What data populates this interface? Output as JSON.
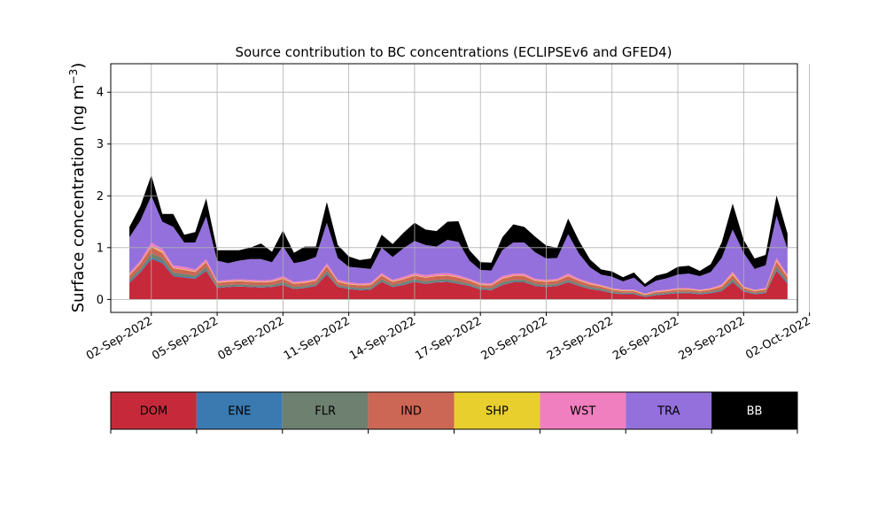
{
  "chart_data": {
    "type": "area",
    "title": "Source contribution to BC concentrations (ECLIPSEv6 and GFED4)",
    "ylabel_main": "Surface concentration (ng m",
    "ylabel_exp": "−3",
    "ylabel_close": ")",
    "xlabel": "",
    "ylim": [
      -0.25,
      4.55
    ],
    "yticks": [
      "0",
      "1",
      "2",
      "3",
      "4"
    ],
    "ytick_values": [
      0,
      1,
      2,
      3,
      4
    ],
    "xlim_days": [
      -0.85,
      30.45
    ],
    "xtick_days": [
      1,
      4,
      7,
      10,
      13,
      16,
      19,
      22,
      25,
      28,
      31
    ],
    "xticks": [
      "02-Sep-2022",
      "05-Sep-2022",
      "08-Sep-2022",
      "11-Sep-2022",
      "14-Sep-2022",
      "17-Sep-2022",
      "20-Sep-2022",
      "23-Sep-2022",
      "26-Sep-2022",
      "29-Sep-2022",
      "02-Oct-2022"
    ],
    "x_unit": "days since 01-Sep-2022",
    "x": [
      0,
      0.5,
      1,
      1.5,
      2,
      2.5,
      3,
      3.5,
      4,
      4.5,
      5,
      5.5,
      6,
      6.5,
      7,
      7.5,
      8,
      8.5,
      9,
      9.5,
      10,
      10.5,
      11,
      11.5,
      12,
      12.5,
      13,
      13.5,
      14,
      14.5,
      15,
      15.5,
      16,
      16.5,
      17,
      17.5,
      18,
      18.5,
      19,
      19.5,
      20,
      20.5,
      21,
      21.5,
      22,
      22.5,
      23,
      23.5,
      24,
      24.5,
      25,
      25.5,
      26,
      26.5,
      27,
      27.5,
      28,
      28.5,
      29,
      29.5,
      30
    ],
    "legend": [
      {
        "label": "DOM",
        "color": "#c62a3a"
      },
      {
        "label": "ENE",
        "color": "#3a7ab0"
      },
      {
        "label": "FLR",
        "color": "#6e8070"
      },
      {
        "label": "IND",
        "color": "#cc6655"
      },
      {
        "label": "SHP",
        "color": "#e8cf2e"
      },
      {
        "label": "WST",
        "color": "#f07fbf"
      },
      {
        "label": "TRA",
        "color": "#9370db"
      },
      {
        "label": "BB",
        "color": "#000000"
      }
    ],
    "series": [
      {
        "name": "DOM",
        "values": [
          0.32,
          0.52,
          0.78,
          0.7,
          0.45,
          0.42,
          0.4,
          0.55,
          0.22,
          0.24,
          0.25,
          0.24,
          0.23,
          0.24,
          0.28,
          0.2,
          0.22,
          0.26,
          0.48,
          0.24,
          0.2,
          0.18,
          0.19,
          0.34,
          0.24,
          0.28,
          0.34,
          0.3,
          0.33,
          0.34,
          0.3,
          0.26,
          0.19,
          0.18,
          0.28,
          0.33,
          0.33,
          0.26,
          0.24,
          0.26,
          0.33,
          0.26,
          0.2,
          0.17,
          0.12,
          0.1,
          0.1,
          0.05,
          0.08,
          0.1,
          0.12,
          0.12,
          0.1,
          0.12,
          0.16,
          0.33,
          0.15,
          0.1,
          0.12,
          0.55,
          0.3
        ]
      },
      {
        "name": "ENE",
        "values": [
          0.02,
          0.02,
          0.03,
          0.03,
          0.02,
          0.02,
          0.02,
          0.02,
          0.01,
          0.01,
          0.01,
          0.01,
          0.01,
          0.01,
          0.01,
          0.01,
          0.01,
          0.01,
          0.02,
          0.01,
          0.01,
          0.01,
          0.01,
          0.01,
          0.01,
          0.01,
          0.01,
          0.01,
          0.01,
          0.01,
          0.01,
          0.01,
          0.01,
          0.01,
          0.01,
          0.01,
          0.01,
          0.01,
          0.01,
          0.01,
          0.01,
          0.01,
          0.01,
          0.01,
          0.01,
          0.01,
          0.01,
          0.01,
          0.01,
          0.01,
          0.01,
          0.01,
          0.01,
          0.01,
          0.01,
          0.02,
          0.01,
          0.01,
          0.01,
          0.02,
          0.02
        ]
      },
      {
        "name": "FLR",
        "values": [
          0.04,
          0.05,
          0.08,
          0.07,
          0.05,
          0.05,
          0.04,
          0.06,
          0.03,
          0.03,
          0.03,
          0.03,
          0.03,
          0.03,
          0.04,
          0.03,
          0.03,
          0.03,
          0.05,
          0.03,
          0.03,
          0.03,
          0.03,
          0.04,
          0.03,
          0.04,
          0.04,
          0.04,
          0.04,
          0.04,
          0.04,
          0.03,
          0.03,
          0.03,
          0.04,
          0.04,
          0.04,
          0.03,
          0.03,
          0.03,
          0.04,
          0.03,
          0.03,
          0.03,
          0.02,
          0.02,
          0.02,
          0.01,
          0.02,
          0.02,
          0.02,
          0.02,
          0.02,
          0.02,
          0.03,
          0.04,
          0.02,
          0.02,
          0.02,
          0.06,
          0.04
        ]
      },
      {
        "name": "IND",
        "values": [
          0.08,
          0.1,
          0.12,
          0.1,
          0.08,
          0.08,
          0.07,
          0.09,
          0.06,
          0.06,
          0.06,
          0.06,
          0.06,
          0.06,
          0.07,
          0.06,
          0.06,
          0.06,
          0.09,
          0.06,
          0.05,
          0.05,
          0.05,
          0.07,
          0.06,
          0.06,
          0.07,
          0.07,
          0.07,
          0.07,
          0.07,
          0.06,
          0.05,
          0.05,
          0.07,
          0.07,
          0.07,
          0.06,
          0.06,
          0.06,
          0.07,
          0.06,
          0.05,
          0.04,
          0.04,
          0.03,
          0.03,
          0.02,
          0.03,
          0.03,
          0.04,
          0.04,
          0.03,
          0.04,
          0.05,
          0.08,
          0.04,
          0.03,
          0.04,
          0.1,
          0.07
        ]
      },
      {
        "name": "SHP",
        "values": [
          0.01,
          0.01,
          0.02,
          0.02,
          0.01,
          0.01,
          0.01,
          0.01,
          0.01,
          0.01,
          0.01,
          0.01,
          0.01,
          0.01,
          0.01,
          0.01,
          0.01,
          0.01,
          0.01,
          0.01,
          0.01,
          0.01,
          0.01,
          0.01,
          0.01,
          0.01,
          0.01,
          0.01,
          0.01,
          0.01,
          0.01,
          0.01,
          0.01,
          0.01,
          0.01,
          0.01,
          0.01,
          0.01,
          0.01,
          0.01,
          0.01,
          0.01,
          0.01,
          0.01,
          0.01,
          0.01,
          0.01,
          0.01,
          0.01,
          0.01,
          0.01,
          0.01,
          0.01,
          0.01,
          0.01,
          0.02,
          0.01,
          0.01,
          0.01,
          0.02,
          0.01
        ]
      },
      {
        "name": "WST",
        "values": [
          0.04,
          0.05,
          0.07,
          0.06,
          0.05,
          0.05,
          0.04,
          0.05,
          0.03,
          0.03,
          0.03,
          0.03,
          0.03,
          0.03,
          0.04,
          0.03,
          0.03,
          0.03,
          0.05,
          0.03,
          0.03,
          0.03,
          0.03,
          0.04,
          0.03,
          0.04,
          0.04,
          0.04,
          0.04,
          0.04,
          0.04,
          0.03,
          0.03,
          0.03,
          0.04,
          0.04,
          0.04,
          0.03,
          0.03,
          0.03,
          0.04,
          0.03,
          0.03,
          0.02,
          0.02,
          0.02,
          0.02,
          0.01,
          0.02,
          0.02,
          0.02,
          0.02,
          0.02,
          0.02,
          0.03,
          0.05,
          0.02,
          0.02,
          0.02,
          0.05,
          0.04
        ]
      },
      {
        "name": "TRA",
        "values": [
          0.69,
          0.77,
          0.9,
          0.52,
          0.74,
          0.47,
          0.52,
          0.82,
          0.39,
          0.32,
          0.36,
          0.4,
          0.41,
          0.34,
          0.58,
          0.36,
          0.38,
          0.42,
          0.78,
          0.42,
          0.3,
          0.3,
          0.27,
          0.49,
          0.44,
          0.55,
          0.62,
          0.58,
          0.52,
          0.64,
          0.64,
          0.35,
          0.25,
          0.25,
          0.5,
          0.6,
          0.6,
          0.51,
          0.41,
          0.4,
          0.76,
          0.48,
          0.29,
          0.2,
          0.22,
          0.16,
          0.23,
          0.13,
          0.19,
          0.22,
          0.26,
          0.28,
          0.26,
          0.31,
          0.51,
          0.81,
          0.65,
          0.4,
          0.44,
          0.81,
          0.49
        ]
      },
      {
        "name": "BB",
        "values": [
          0.2,
          0.28,
          0.4,
          0.15,
          0.25,
          0.15,
          0.2,
          0.35,
          0.2,
          0.25,
          0.2,
          0.22,
          0.3,
          0.2,
          0.3,
          0.2,
          0.28,
          0.2,
          0.4,
          0.25,
          0.2,
          0.15,
          0.2,
          0.25,
          0.25,
          0.3,
          0.35,
          0.3,
          0.3,
          0.35,
          0.4,
          0.2,
          0.15,
          0.15,
          0.25,
          0.35,
          0.3,
          0.3,
          0.25,
          0.2,
          0.3,
          0.25,
          0.15,
          0.1,
          0.1,
          0.08,
          0.1,
          0.06,
          0.1,
          0.1,
          0.15,
          0.15,
          0.1,
          0.15,
          0.3,
          0.5,
          0.25,
          0.2,
          0.2,
          0.4,
          0.3
        ]
      }
    ]
  }
}
